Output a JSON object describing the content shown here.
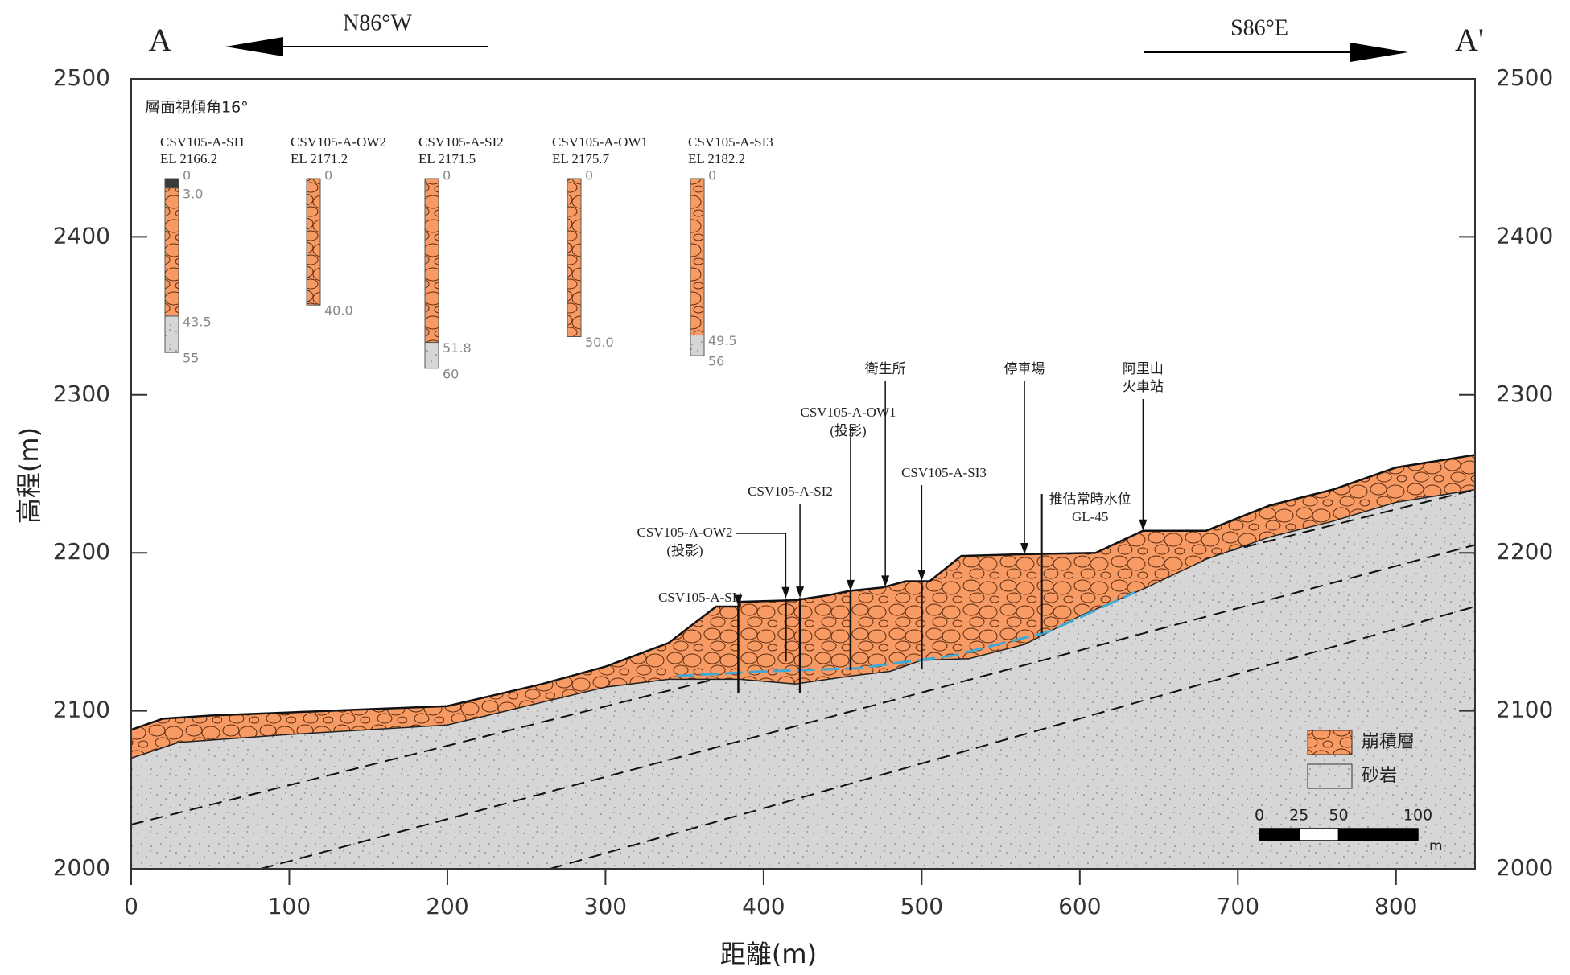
{
  "chart_data": {
    "type": "cross-section",
    "header": {
      "left": "A",
      "right": "A'",
      "left_bearing": "N86°W",
      "right_bearing": "S86°E"
    },
    "note": "層面視傾角16°",
    "x_label": "距離(m)",
    "y_label": "高程(m)",
    "xlim": [
      0,
      850
    ],
    "ylim": [
      2000,
      2500
    ],
    "xticks": [
      0,
      100,
      200,
      300,
      400,
      500,
      600,
      700,
      800
    ],
    "yticks": [
      2000,
      2100,
      2200,
      2300,
      2400,
      2500
    ],
    "surface": {
      "x": [
        0,
        20,
        50,
        100,
        150,
        200,
        230,
        260,
        300,
        340,
        370,
        385,
        385,
        420,
        440,
        455,
        475,
        490,
        505,
        525,
        560,
        610,
        625,
        640,
        680,
        720,
        760,
        800,
        850
      ],
      "y": [
        2088,
        2095,
        2097,
        2099,
        2101,
        2103,
        2110,
        2117,
        2128,
        2143,
        2166,
        2166,
        2169,
        2170,
        2173,
        2176,
        2178,
        2182,
        2182,
        2198,
        2199,
        2200,
        2207,
        2214,
        2214,
        2230,
        2240,
        2254,
        2262
      ]
    },
    "colluvium_base": {
      "x": [
        0,
        30,
        100,
        150,
        200,
        250,
        300,
        340,
        385,
        420,
        455,
        480,
        500,
        530,
        565,
        600,
        640,
        680,
        720,
        760,
        800,
        850
      ],
      "y": [
        2070,
        2080,
        2085,
        2088,
        2091,
        2103,
        2115,
        2120,
        2120,
        2117,
        2122,
        2125,
        2132,
        2133,
        2142,
        2160,
        2177,
        2196,
        2210,
        2220,
        2232,
        2240
      ]
    },
    "bedding": [
      {
        "x": [
          0,
          850
        ],
        "y": [
          2028,
          2240
        ]
      },
      {
        "x": [
          82,
          850
        ],
        "y": [
          2000,
          2205
        ]
      },
      {
        "x": [
          265,
          850
        ],
        "y": [
          2000,
          2166
        ]
      }
    ],
    "water_level": {
      "x": [
        345,
        400,
        460,
        520,
        580,
        635
      ],
      "y": [
        2122,
        2125,
        2127,
        2135,
        2150,
        2175
      ],
      "color": "#3fa9d8"
    },
    "legend": [
      {
        "name": "崩積層",
        "color": "#f79a63"
      },
      {
        "name": "砂岩",
        "color": "#d6d6d6"
      }
    ],
    "boreholes": [
      {
        "name": "CSV105-A-SI1",
        "elevation": {
          "value": 2166.2,
          "label": "EL 2166.2"
        },
        "x": 384,
        "depths": [
          0,
          {
            "value": 3,
            "label": "3.0"
          },
          43.5,
          55
        ],
        "layers": [
          "#3a3a3a",
          "#f79a63",
          "#d6d6d6"
        ]
      },
      {
        "name": "CSV105-A-OW2",
        "elevation": {
          "value": 2171.2,
          "label": "EL 2171.2"
        },
        "x": 414,
        "note": "(投影)",
        "depths": [
          0,
          {
            "value": 40,
            "label": "40.0"
          }
        ],
        "layers": [
          "#f79a63"
        ]
      },
      {
        "name": "CSV105-A-SI2",
        "elevation": {
          "value": 2171.5,
          "label": "EL 2171.5"
        },
        "x": 423,
        "depths": [
          0,
          51.8,
          60
        ],
        "layers": [
          "#f79a63",
          "#d6d6d6"
        ]
      },
      {
        "name": "CSV105-A-OW1",
        "elevation": {
          "value": 2175.7,
          "label": "EL 2175.7"
        },
        "x": 455,
        "note": "(投影)",
        "depths": [
          0,
          {
            "value": 50,
            "label": "50.0"
          }
        ],
        "layers": [
          "#f79a63"
        ]
      },
      {
        "name": "CSV105-A-SI3",
        "elevation": {
          "value": 2182.2,
          "label": "EL 2182.2"
        },
        "x": 500,
        "depths": [
          0,
          49.5,
          56
        ],
        "layers": [
          "#f79a63",
          "#d6d6d6"
        ]
      }
    ],
    "markers": [
      {
        "lines": [
          "衛生所"
        ],
        "x": 477
      },
      {
        "lines": [
          "停車場"
        ],
        "x": 565
      },
      {
        "lines": [
          "阿里山",
          "火車站"
        ],
        "x": 640
      },
      {
        "lines": [
          "推估常時水位",
          "GL-45"
        ],
        "x": 576
      }
    ],
    "scale_bar": {
      "ticks": [
        0,
        25,
        50,
        100
      ],
      "unit": "m"
    }
  }
}
